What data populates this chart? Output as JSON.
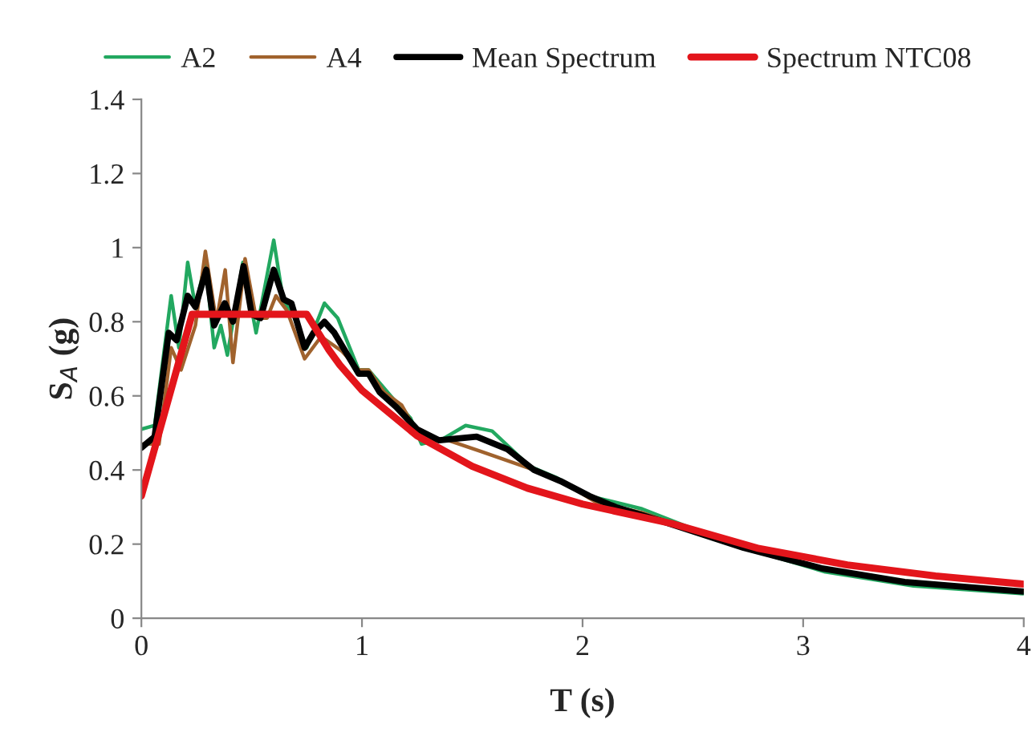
{
  "chart_data": {
    "type": "line",
    "xlabel": "T (s)",
    "ylabel": "S$_{A}$ (g)",
    "xlim": [
      0,
      4
    ],
    "xticks": [
      0,
      1,
      2,
      3,
      4
    ],
    "ylim": [
      0,
      1.4
    ],
    "yticks": [
      0,
      0.2,
      0.4,
      0.6,
      0.8,
      1,
      1.2,
      1.4
    ],
    "grid": false,
    "legend": "top",
    "marker": "none",
    "line_style": "solid",
    "series": [
      {
        "name": "A2",
        "color": "#22a860",
        "x": [
          0,
          0.06,
          0.135,
          0.17,
          0.21,
          0.245,
          0.29,
          0.33,
          0.36,
          0.39,
          0.46,
          0.52,
          0.6,
          0.645,
          0.68,
          0.75,
          0.83,
          0.89,
          0.985,
          1.03,
          1.13,
          1.22,
          1.27,
          1.37,
          1.47,
          1.59,
          1.76,
          1.88,
          2.03,
          2.27,
          2.7,
          3.1,
          3.5,
          4
        ],
        "values": [
          0.51,
          0.52,
          0.87,
          0.73,
          0.96,
          0.84,
          0.96,
          0.73,
          0.79,
          0.71,
          0.96,
          0.77,
          1.02,
          0.85,
          0.83,
          0.73,
          0.85,
          0.81,
          0.67,
          0.67,
          0.6,
          0.54,
          0.47,
          0.485,
          0.52,
          0.505,
          0.41,
          0.38,
          0.33,
          0.295,
          0.195,
          0.125,
          0.087,
          0.066
        ]
      },
      {
        "name": "A4",
        "color": "#a0622d",
        "x": [
          0,
          0.08,
          0.135,
          0.18,
          0.245,
          0.29,
          0.34,
          0.38,
          0.415,
          0.47,
          0.52,
          0.57,
          0.61,
          0.66,
          0.74,
          0.815,
          0.91,
          0.985,
          1.03,
          1.1,
          1.18,
          1.27,
          1.39,
          1.54,
          1.78,
          1.93,
          2.07,
          2.27,
          2.7,
          3.1,
          3.5,
          4
        ],
        "values": [
          0.47,
          0.47,
          0.73,
          0.67,
          0.79,
          0.99,
          0.8,
          0.94,
          0.69,
          0.97,
          0.81,
          0.81,
          0.87,
          0.83,
          0.7,
          0.76,
          0.72,
          0.67,
          0.67,
          0.61,
          0.575,
          0.48,
          0.48,
          0.45,
          0.4,
          0.36,
          0.31,
          0.285,
          0.195,
          0.135,
          0.095,
          0.075
        ]
      },
      {
        "name": "Mean Spectrum",
        "color": "#000000",
        "x": [
          0,
          0.06,
          0.124,
          0.16,
          0.21,
          0.245,
          0.294,
          0.33,
          0.378,
          0.415,
          0.463,
          0.5,
          0.54,
          0.6,
          0.645,
          0.68,
          0.74,
          0.78,
          0.83,
          0.875,
          0.985,
          1.03,
          1.08,
          1.155,
          1.25,
          1.35,
          1.52,
          1.66,
          1.78,
          1.9,
          2.03,
          2.15,
          2.37,
          2.73,
          3.09,
          3.46,
          4
        ],
        "values": [
          0.46,
          0.49,
          0.77,
          0.75,
          0.87,
          0.84,
          0.94,
          0.79,
          0.85,
          0.8,
          0.95,
          0.82,
          0.81,
          0.94,
          0.86,
          0.85,
          0.73,
          0.77,
          0.8,
          0.77,
          0.66,
          0.66,
          0.61,
          0.57,
          0.51,
          0.48,
          0.49,
          0.456,
          0.4,
          0.37,
          0.33,
          0.3,
          0.26,
          0.19,
          0.134,
          0.098,
          0.072
        ]
      },
      {
        "name": "Spectrum NTC08",
        "color": "#e3151b",
        "x": [
          0,
          0.23,
          0.75,
          0.85,
          0.9,
          1.0,
          1.25,
          1.5,
          1.75,
          2.0,
          2.4,
          2.8,
          3.2,
          3.6,
          4
        ],
        "values": [
          0.33,
          0.82,
          0.82,
          0.724,
          0.683,
          0.615,
          0.492,
          0.41,
          0.351,
          0.308,
          0.256,
          0.188,
          0.144,
          0.114,
          0.092
        ]
      }
    ]
  }
}
